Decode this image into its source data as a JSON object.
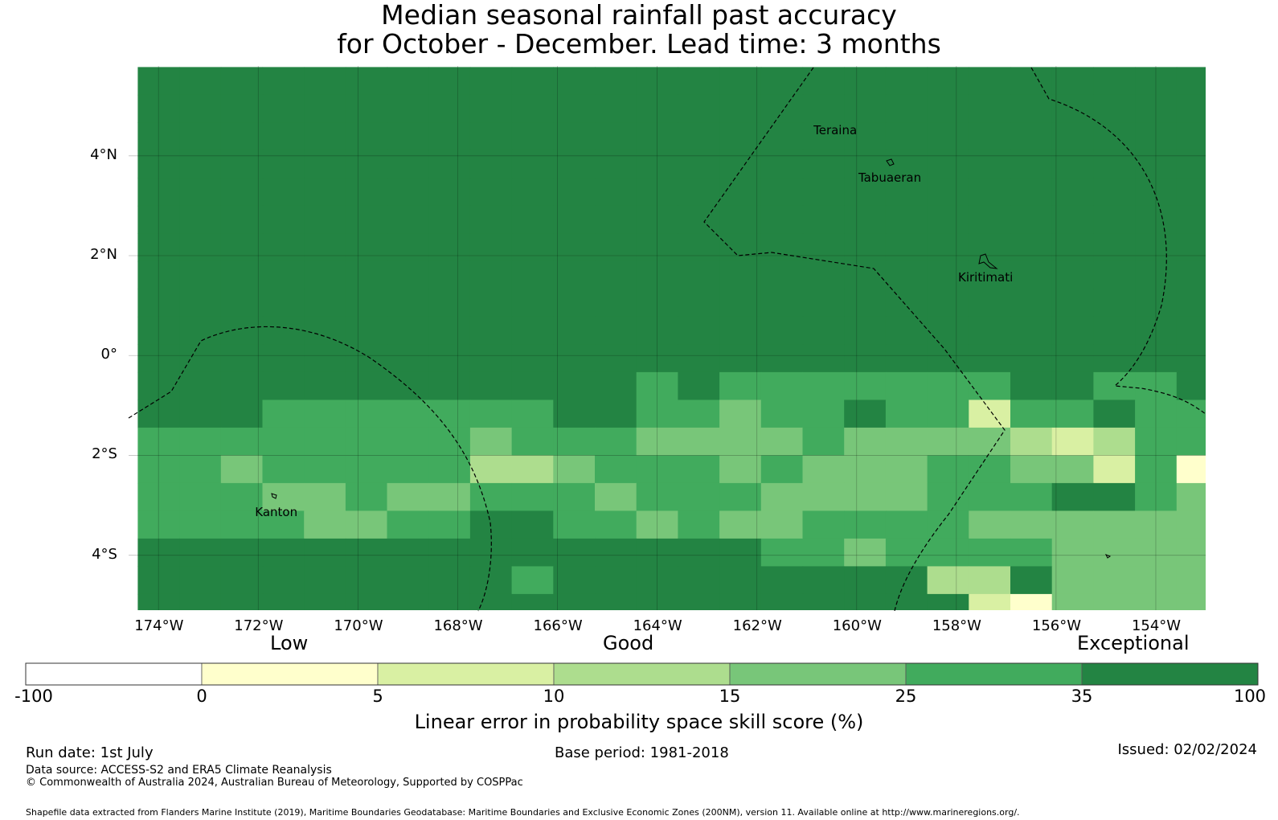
{
  "title": {
    "line1": "Median seasonal rainfall past accuracy",
    "line2": "for October - December. Lead time: 3 months"
  },
  "map": {
    "lon_range": [
      -174.6,
      -153.0
    ],
    "lat_range": [
      -5.1,
      5.8
    ],
    "lon_ticks": [
      {
        "v": -174,
        "t": "174°W"
      },
      {
        "v": -172,
        "t": "172°W"
      },
      {
        "v": -170,
        "t": "170°W"
      },
      {
        "v": -168,
        "t": "168°W"
      },
      {
        "v": -166,
        "t": "166°W"
      },
      {
        "v": -164,
        "t": "164°W"
      },
      {
        "v": -162,
        "t": "162°W"
      },
      {
        "v": -160,
        "t": "160°W"
      },
      {
        "v": -158,
        "t": "158°W"
      },
      {
        "v": -156,
        "t": "156°W"
      },
      {
        "v": -154,
        "t": "154°W"
      }
    ],
    "lat_ticks": [
      {
        "v": 4,
        "t": "4°N"
      },
      {
        "v": 2,
        "t": "2°N"
      },
      {
        "v": 0,
        "t": "0°"
      },
      {
        "v": -2,
        "t": "2°S"
      },
      {
        "v": -4,
        "t": "4°S"
      }
    ],
    "places": [
      {
        "name": "Teraina",
        "lon": -160.8,
        "lat": 4.5
      },
      {
        "name": "Tabuaeran",
        "lon": -159.9,
        "lat": 3.55
      },
      {
        "name": "Kiritimati",
        "lon": -157.9,
        "lat": 1.55
      },
      {
        "name": "Kanton",
        "lon": -172.0,
        "lat": -3.15
      }
    ],
    "rows_note": "skill category per grid cell: 0=white,1=0-5,2=5-10,3=10-15,4=15-25,5=25-35,6=35-100",
    "grid": {
      "col0_center_lon": -174.0,
      "row0_center_lat": 5.5,
      "step_lon": 0.8333,
      "step_lat": 0.5555,
      "rows": [
        "66666666666666666666666666",
        "66666666666666666666666666",
        "66666666666666666666666666",
        "66666666666666666666666666",
        "66666666666666666666666666",
        "66666666666666666666666666",
        "66666666666666666666666666",
        "66666666666666666666666666",
        "66666666666666666666666666",
        "66666666666666666666666666",
        "66666666666666666666666666",
        "66666666666656555555566556",
        "66655555556655455655255655",
        "55555555455544445444432355",
        "55455555334555454445544251",
        "55544544555455544445556654",
        "55554455665545445555444444",
        "66666666666666655455554444",
        "66666666656666666663364444",
        "66666666666666666666214444"
      ]
    }
  },
  "categories": {
    "low": "Low",
    "good": "Good",
    "exceptional": "Exceptional"
  },
  "colorbar": {
    "colors": [
      "#ffffff",
      "#ffffcc",
      "#d9f0a3",
      "#addd8e",
      "#78c679",
      "#41ab5d",
      "#238443"
    ],
    "ticks": [
      "-100",
      "0",
      "5",
      "10",
      "15",
      "25",
      "35",
      "100"
    ],
    "label": "Linear error in probability space skill score (%)"
  },
  "footer": {
    "run_date": "Run date: 1st July",
    "base_period": "Base period: 1981-2018",
    "issued": "Issued: 02/02/2024",
    "data_source": "Data source: ACCESS-S2 and ERA5 Climate Reanalysis",
    "copyright": "© Commonwealth of Australia 2024, Australian Bureau of Meteorology, Supported by COSPPac",
    "shapefile": "Shapefile data extracted from Flanders Marine Institute (2019), Maritime Boundaries Geodatabase: Maritime Boundaries and Exclusive Economic Zones (200NM), version 11. Available online at http://www.marineregions.org/."
  }
}
